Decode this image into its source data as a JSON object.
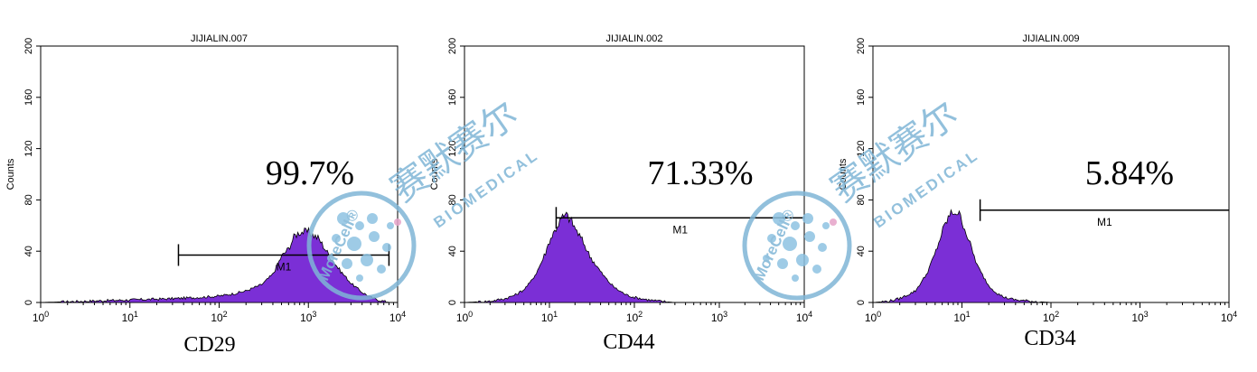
{
  "chart_data": [
    {
      "type": "area",
      "title": "JIJIALIN.007",
      "xlabel": "CD29",
      "ylabel": "Counts",
      "x_scale": "log",
      "xlim": [
        1,
        10000
      ],
      "ylim": [
        0,
        200
      ],
      "x_ticks": [
        {
          "base": "10",
          "exp": "0"
        },
        {
          "base": "10",
          "exp": "1"
        },
        {
          "base": "10",
          "exp": "2"
        },
        {
          "base": "10",
          "exp": "3"
        },
        {
          "base": "10",
          "exp": "4"
        }
      ],
      "y_ticks": [
        "0",
        "40",
        "80",
        "120",
        "160",
        "200"
      ],
      "fill_color": "#7b2fd6",
      "series": [
        {
          "x": [
            1,
            3,
            10,
            30,
            60,
            100,
            150,
            200,
            300,
            400,
            500,
            600,
            700,
            800,
            1000,
            1300,
            1700,
            2200,
            3000,
            4000,
            5000,
            6000,
            7000,
            8000
          ],
          "values": [
            0,
            1,
            2,
            3,
            4,
            5,
            7,
            9,
            14,
            22,
            36,
            42,
            52,
            55,
            55,
            50,
            37,
            26,
            15,
            8,
            4,
            2,
            1,
            0
          ]
        }
      ],
      "gate": {
        "label": "M1",
        "from": 35,
        "to": 8000,
        "count_level": 37,
        "percent": "99.7%"
      }
    },
    {
      "type": "area",
      "title": "JIJIALIN.002",
      "xlabel": "CD44",
      "ylabel": "Counts",
      "x_scale": "log",
      "xlim": [
        1,
        10000
      ],
      "ylim": [
        0,
        200
      ],
      "x_ticks": [
        {
          "base": "10",
          "exp": "0"
        },
        {
          "base": "10",
          "exp": "1"
        },
        {
          "base": "10",
          "exp": "2"
        },
        {
          "base": "10",
          "exp": "3"
        },
        {
          "base": "10",
          "exp": "4"
        }
      ],
      "y_ticks": [
        "0",
        "40",
        "80",
        "120",
        "160",
        "200"
      ],
      "fill_color": "#7b2fd6",
      "series": [
        {
          "x": [
            1,
            2,
            3,
            4,
            5,
            6,
            7,
            8,
            9,
            10,
            12,
            14,
            16,
            18,
            20,
            25,
            30,
            40,
            50,
            60,
            80,
            100,
            150,
            200,
            300,
            1000,
            10000
          ],
          "values": [
            0,
            1,
            3,
            6,
            10,
            16,
            23,
            31,
            39,
            48,
            58,
            66,
            68,
            64,
            58,
            47,
            36,
            24,
            16,
            11,
            6,
            4,
            2,
            1,
            0,
            0,
            0
          ]
        }
      ],
      "gate": {
        "label": "M1",
        "from": 12,
        "to": 10000,
        "count_level": 66,
        "percent": "71.33%"
      }
    },
    {
      "type": "area",
      "title": "JIJIALIN.009",
      "xlabel": "CD34",
      "ylabel": "Counts",
      "x_scale": "log",
      "xlim": [
        1,
        10000
      ],
      "ylim": [
        0,
        200
      ],
      "x_ticks": [
        {
          "base": "10",
          "exp": "0"
        },
        {
          "base": "10",
          "exp": "1"
        },
        {
          "base": "10",
          "exp": "2"
        },
        {
          "base": "10",
          "exp": "3"
        },
        {
          "base": "10",
          "exp": "4"
        }
      ],
      "y_ticks": [
        "0",
        "40",
        "80",
        "120",
        "160",
        "200"
      ],
      "fill_color": "#7b2fd6",
      "series": [
        {
          "x": [
            1,
            1.5,
            2,
            3,
            4,
            5,
            6,
            7,
            8,
            9,
            10,
            12,
            15,
            20,
            25,
            30,
            40,
            60,
            100,
            300,
            1000,
            10000
          ],
          "values": [
            0,
            1,
            3,
            9,
            22,
            38,
            55,
            66,
            71,
            70,
            64,
            48,
            28,
            13,
            7,
            4,
            2,
            1,
            0,
            0,
            0,
            0
          ]
        }
      ],
      "gate": {
        "label": "M1",
        "from": 16,
        "to": 10000,
        "count_level": 72,
        "percent": "5.84%"
      }
    }
  ],
  "watermark": {
    "brand_cn": "赛默赛尔",
    "brand_en": "BIOMEDICAL",
    "logo_text": "MoreCell",
    "registered": "®"
  }
}
